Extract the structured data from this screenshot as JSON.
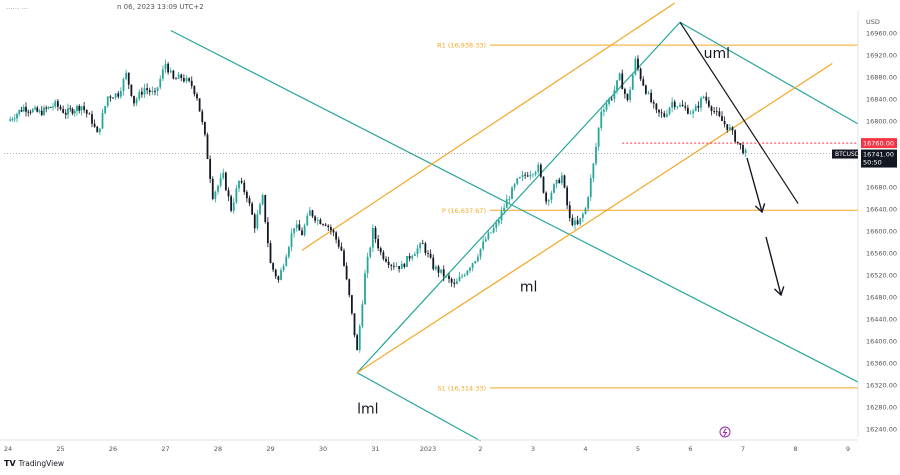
{
  "header": {
    "left_text": "...... ...",
    "timestamp": "n 06, 2023 13:09 UTC+2"
  },
  "footer": {
    "logo_mark": "TV",
    "logo_text": "TradingView"
  },
  "colors": {
    "up": "#26a69a",
    "down": "#131722",
    "orange": "#f5a623",
    "teal": "#26a69a",
    "red": "#f23645",
    "axis_text": "#555555"
  },
  "icons": {
    "bolt": "lightning-bolt-icon",
    "logo": "tradingview-logo-icon"
  },
  "chart_data": {
    "type": "candlestick",
    "symbol": "BTCUSD",
    "y_axis": {
      "unit": "USD",
      "ticks": [
        "16960.00",
        "16920.00",
        "16880.00",
        "16840.00",
        "16800.00",
        "16760.00",
        "16720.00",
        "16680.00",
        "16640.00",
        "16600.00",
        "16560.00",
        "16520.00",
        "16480.00",
        "16440.00",
        "16400.00",
        "16360.00",
        "16320.00",
        "16280.00",
        "16240.00"
      ],
      "range": [
        16225,
        16995
      ]
    },
    "x_axis": {
      "ticks": [
        "24",
        "25",
        "26",
        "27",
        "28",
        "29",
        "30",
        "31",
        "2023",
        "2",
        "3",
        "4",
        "5",
        "6",
        "7",
        "8",
        "9"
      ]
    },
    "current_price": {
      "symbol": "BTCUSD",
      "value": "16741.00",
      "countdown": "50:50"
    },
    "marked_level": {
      "value": "16760.00"
    },
    "pivots": [
      {
        "label": "R1 (16,938.33)",
        "value": 16938.33
      },
      {
        "label": "P (16,637.67)",
        "value": 16637.67
      },
      {
        "label": "S1 (16,314.33)",
        "value": 16314.33
      }
    ],
    "annotations": [
      "uml",
      "ml",
      "lml"
    ],
    "price_path": [
      [
        24.0,
        16800
      ],
      [
        24.3,
        16825
      ],
      [
        24.6,
        16815
      ],
      [
        24.9,
        16830
      ],
      [
        25.1,
        16815
      ],
      [
        25.4,
        16828
      ],
      [
        25.6,
        16800
      ],
      [
        25.7,
        16775
      ],
      [
        25.9,
        16845
      ],
      [
        26.1,
        16850
      ],
      [
        26.25,
        16885
      ],
      [
        26.4,
        16835
      ],
      [
        26.6,
        16860
      ],
      [
        26.8,
        16848
      ],
      [
        27.0,
        16905
      ],
      [
        27.15,
        16875
      ],
      [
        27.3,
        16880
      ],
      [
        27.5,
        16865
      ],
      [
        27.6,
        16845
      ],
      [
        27.75,
        16770
      ],
      [
        27.9,
        16665
      ],
      [
        28.1,
        16700
      ],
      [
        28.25,
        16640
      ],
      [
        28.4,
        16690
      ],
      [
        28.55,
        16665
      ],
      [
        28.7,
        16610
      ],
      [
        28.85,
        16660
      ],
      [
        29.0,
        16540
      ],
      [
        29.15,
        16510
      ],
      [
        29.3,
        16560
      ],
      [
        29.45,
        16610
      ],
      [
        29.6,
        16595
      ],
      [
        29.75,
        16635
      ],
      [
        29.9,
        16620
      ],
      [
        30.05,
        16615
      ],
      [
        30.2,
        16595
      ],
      [
        30.35,
        16565
      ],
      [
        30.5,
        16480
      ],
      [
        30.65,
        16380
      ],
      [
        30.8,
        16520
      ],
      [
        30.95,
        16600
      ],
      [
        31.1,
        16560
      ],
      [
        31.3,
        16540
      ],
      [
        31.5,
        16535
      ],
      [
        31.7,
        16560
      ],
      [
        31.9,
        16575
      ],
      [
        32.1,
        16535
      ],
      [
        32.3,
        16520
      ],
      [
        32.5,
        16500
      ],
      [
        32.7,
        16525
      ],
      [
        32.9,
        16550
      ],
      [
        33.1,
        16585
      ],
      [
        33.3,
        16610
      ],
      [
        33.5,
        16655
      ],
      [
        33.7,
        16690
      ],
      [
        33.9,
        16705
      ],
      [
        34.1,
        16715
      ],
      [
        34.25,
        16655
      ],
      [
        34.4,
        16680
      ],
      [
        34.55,
        16700
      ],
      [
        34.7,
        16620
      ],
      [
        34.85,
        16610
      ],
      [
        35.0,
        16640
      ],
      [
        35.15,
        16720
      ],
      [
        35.3,
        16820
      ],
      [
        35.5,
        16845
      ],
      [
        35.65,
        16880
      ],
      [
        35.8,
        16835
      ],
      [
        35.95,
        16910
      ],
      [
        36.05,
        16880
      ],
      [
        36.2,
        16845
      ],
      [
        36.35,
        16815
      ],
      [
        36.5,
        16810
      ],
      [
        36.65,
        16835
      ],
      [
        36.85,
        16825
      ],
      [
        37.05,
        16815
      ],
      [
        37.25,
        16845
      ],
      [
        37.4,
        16825
      ],
      [
        37.55,
        16805
      ],
      [
        37.75,
        16785
      ],
      [
        37.9,
        16760
      ],
      [
        38.05,
        16741
      ]
    ]
  }
}
